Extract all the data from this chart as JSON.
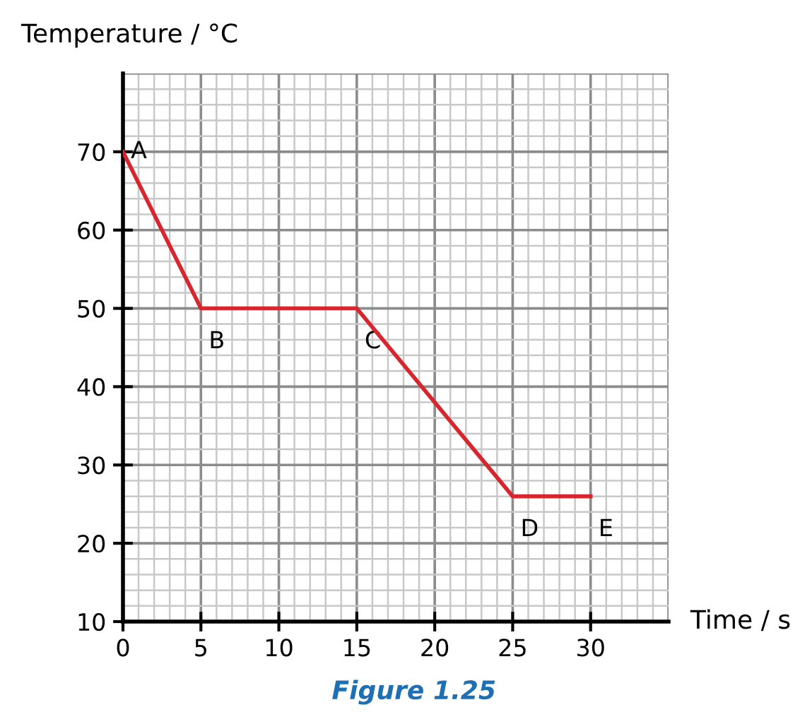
{
  "chart_data": {
    "type": "line",
    "xlabel": "Time / s",
    "ylabel": "Temperature / °C",
    "x": [
      0,
      5,
      15,
      25,
      30
    ],
    "series": [
      {
        "color": "#d7262e",
        "values": [
          70,
          50,
          50,
          26,
          26
        ]
      }
    ],
    "xlim": [
      0,
      35
    ],
    "ylim": [
      10,
      80
    ],
    "xticks": [
      0,
      5,
      10,
      15,
      20,
      25,
      30
    ],
    "yticks": [
      10,
      20,
      30,
      40,
      50,
      60,
      70
    ],
    "grid": true,
    "marker": "none",
    "line_style": "solid",
    "annotations": [
      {
        "text": "A",
        "x": 0,
        "y": 70
      },
      {
        "text": "B",
        "x": 5,
        "y": 50
      },
      {
        "text": "C",
        "x": 15,
        "y": 50
      },
      {
        "text": "D",
        "x": 25,
        "y": 26
      },
      {
        "text": "E",
        "x": 30,
        "y": 26
      },
      "Figure 1.25"
    ]
  }
}
